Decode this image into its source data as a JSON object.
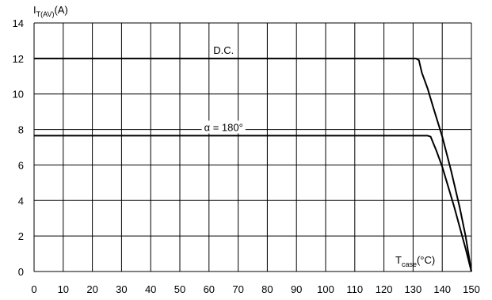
{
  "chart_data": {
    "type": "line",
    "ylabel": {
      "main": "I",
      "sub": "T(AV)",
      "unit": "(A)"
    },
    "xlabel": {
      "main": "T",
      "sub": "case",
      "unit": "(°C)"
    },
    "xlim": [
      0,
      150
    ],
    "ylim": [
      0,
      14
    ],
    "x_ticks": [
      0,
      10,
      20,
      30,
      40,
      50,
      60,
      70,
      80,
      90,
      100,
      110,
      120,
      130,
      140,
      150
    ],
    "y_ticks": [
      0,
      2,
      4,
      6,
      8,
      10,
      12,
      14
    ],
    "grid": true,
    "series": [
      {
        "name": "D.C.",
        "x": [
          0,
          128,
          131,
          132,
          133,
          135,
          137,
          140,
          143,
          146,
          148,
          150
        ],
        "y": [
          12.0,
          12.0,
          12.0,
          11.9,
          11.2,
          10.3,
          9.2,
          7.6,
          5.7,
          3.6,
          2.0,
          0
        ]
      },
      {
        "name": "α = 180°",
        "x": [
          0,
          134,
          135,
          136,
          138,
          140,
          142,
          144,
          146,
          148,
          150
        ],
        "y": [
          7.65,
          7.65,
          7.65,
          7.6,
          6.8,
          5.9,
          4.8,
          3.7,
          2.5,
          1.3,
          0
        ]
      }
    ]
  }
}
